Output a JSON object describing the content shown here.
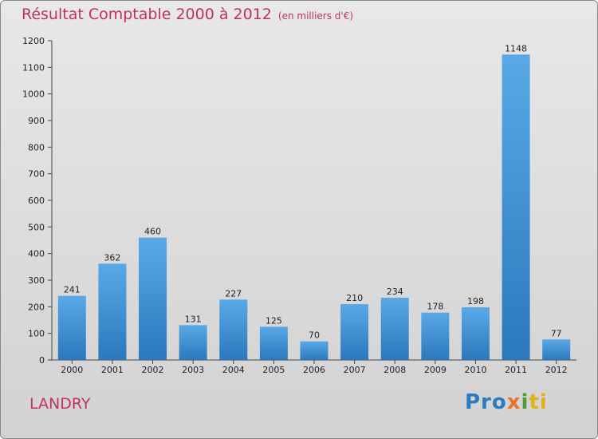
{
  "title": "Résultat Comptable 2000 à 2012",
  "subtitle": "(en milliers d'€)",
  "place": "LANDRY",
  "logo": {
    "text": "Proxiti",
    "colors": [
      "#2a7bc1",
      "#e8742a",
      "#4a9e3a",
      "#e0b21a"
    ]
  },
  "colors": {
    "title": "#c0325c",
    "bar_top": "#5aa9e6",
    "bar_bottom": "#2b78bd"
  },
  "chart_data": {
    "type": "bar",
    "categories": [
      "2000",
      "2001",
      "2002",
      "2003",
      "2004",
      "2005",
      "2006",
      "2007",
      "2008",
      "2009",
      "2010",
      "2011",
      "2012"
    ],
    "values": [
      241,
      362,
      460,
      131,
      227,
      125,
      70,
      210,
      234,
      178,
      198,
      1148,
      77
    ],
    "data_labels": [
      "241",
      "362",
      "460",
      "131",
      "227",
      "125",
      "70",
      "210",
      "234",
      "178",
      "198",
      "1148",
      "77"
    ],
    "ylim": [
      0,
      1200
    ],
    "yticks": [
      0,
      100,
      200,
      300,
      400,
      500,
      600,
      700,
      800,
      900,
      1000,
      1100,
      1200
    ],
    "grid": false,
    "xlabel": "",
    "ylabel": ""
  }
}
